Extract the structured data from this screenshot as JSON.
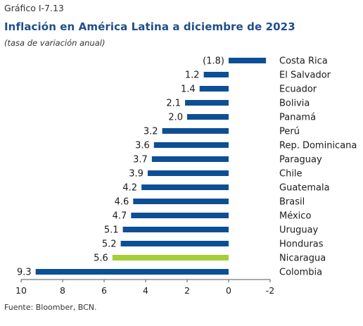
{
  "header": {
    "figure_label": "Gráfico I-7.13",
    "title": "Inflación en América Latina a diciembre de 2023",
    "subtitle": "(tasa de variación anual)"
  },
  "footer": {
    "source": "Fuente: Bloomber, BCN."
  },
  "colors": {
    "bar": "#0d4f94",
    "highlight": "#a6ce39"
  },
  "chart_data": {
    "type": "bar",
    "orientation": "horizontal",
    "x_axis_reversed": true,
    "categories": [
      "Costa Rica",
      "El Salvador",
      "Ecuador",
      "Bolivia",
      "Panamá",
      "Perú",
      "Rep. Dominicana",
      "Paraguay",
      "Chile",
      "Guatemala",
      "Brasil",
      "México",
      "Uruguay",
      "Honduras",
      "Nicaragua",
      "Colombia"
    ],
    "values": [
      -1.8,
      1.2,
      1.4,
      2.1,
      2.0,
      3.2,
      3.6,
      3.7,
      3.9,
      4.2,
      4.6,
      4.7,
      5.1,
      5.2,
      5.6,
      9.3
    ],
    "value_labels": [
      "(1.8)",
      "1.2",
      "1.4",
      "2.1",
      "2.0",
      "3.2",
      "3.6",
      "3.7",
      "3.9",
      "4.2",
      "4.6",
      "4.7",
      "5.1",
      "5.2",
      "5.6",
      "9.3"
    ],
    "highlight": "Nicaragua",
    "xlim": [
      10,
      -2
    ],
    "x_ticks": [
      10,
      8,
      6,
      4,
      2,
      0,
      -2
    ],
    "x_tick_labels": [
      "10",
      "8",
      "6",
      "4",
      "2",
      "0",
      "-2"
    ],
    "grid": false,
    "legend": "none"
  }
}
